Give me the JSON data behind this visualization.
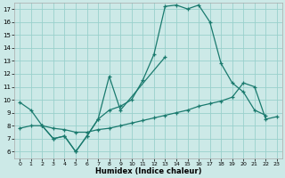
{
  "xlabel": "Humidex (Indice chaleur)",
  "xlim": [
    -0.5,
    23.5
  ],
  "ylim": [
    5.5,
    17.5
  ],
  "xticks": [
    0,
    1,
    2,
    3,
    4,
    5,
    6,
    7,
    8,
    9,
    10,
    11,
    12,
    13,
    14,
    15,
    16,
    17,
    18,
    19,
    20,
    21,
    22,
    23
  ],
  "yticks": [
    6,
    7,
    8,
    9,
    10,
    11,
    12,
    13,
    14,
    15,
    16,
    17
  ],
  "bg_color": "#cce9e7",
  "grid_color": "#99d0cc",
  "line_color": "#1a7a6e",
  "line1_x": [
    0,
    1,
    2,
    3,
    4,
    5,
    6,
    7,
    8,
    9,
    10,
    11,
    12,
    13,
    14,
    15,
    16,
    17,
    18,
    19,
    20,
    21,
    22
  ],
  "line1_y": [
    9.8,
    9.2,
    8.0,
    7.0,
    7.2,
    6.0,
    7.2,
    8.5,
    9.2,
    9.5,
    10.0,
    11.5,
    13.5,
    17.2,
    17.3,
    17.0,
    17.3,
    16.0,
    12.8,
    11.3,
    10.6,
    9.2,
    8.8
  ],
  "line2_x": [
    2,
    3,
    4,
    5,
    6,
    7,
    8,
    9,
    13
  ],
  "line2_y": [
    8.0,
    7.0,
    7.2,
    6.0,
    7.2,
    8.5,
    11.8,
    9.2,
    13.3
  ],
  "line3_x": [
    0,
    1,
    2,
    3,
    4,
    5,
    6,
    7,
    8,
    9,
    10,
    11,
    12,
    13,
    14,
    15,
    16,
    17,
    18,
    19,
    20,
    21,
    22,
    23
  ],
  "line3_y": [
    7.8,
    8.0,
    8.0,
    7.8,
    7.7,
    7.5,
    7.5,
    7.7,
    7.8,
    8.0,
    8.2,
    8.4,
    8.6,
    8.8,
    9.0,
    9.2,
    9.5,
    9.7,
    9.9,
    10.2,
    11.3,
    11.0,
    8.5,
    8.7
  ]
}
